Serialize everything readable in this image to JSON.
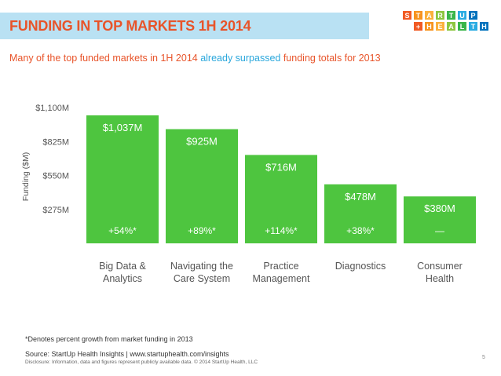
{
  "header": {
    "title": "FUNDING IN TOP MARKETS 1H 2014",
    "logo_row1": [
      "S",
      "T",
      "A",
      "R",
      "T",
      "U",
      "P"
    ],
    "logo_row2": [
      "+",
      "H",
      "E",
      "A",
      "L",
      "T",
      "H"
    ],
    "logo_colors_row1": [
      "#f15a24",
      "#f7931e",
      "#fbb03b",
      "#8cc63f",
      "#39b54a",
      "#29abe2",
      "#0071bc"
    ],
    "logo_colors_row2": [
      "#f15a24",
      "#f7931e",
      "#fbb03b",
      "#8cc63f",
      "#39b54a",
      "#29abe2",
      "#0071bc"
    ]
  },
  "subtitle": {
    "part1": "Many of the top funded markets in 1H 2014 ",
    "part2": "already surpassed",
    "part3": " funding totals for 2013"
  },
  "chart_data": {
    "type": "bar",
    "title": "FUNDING IN TOP MARKETS 1H 2014",
    "ylabel": "Funding ($M)",
    "xlabel": "",
    "ylim": [
      0,
      1100
    ],
    "yticks": [
      275,
      550,
      825,
      1100
    ],
    "ytick_labels": [
      "$275M",
      "$550M",
      "$825M",
      "$1,100M"
    ],
    "grid": false,
    "bar_color": "#4ec53f",
    "categories": [
      [
        "Big Data &",
        "Analytics"
      ],
      [
        "Navigating the",
        "Care System"
      ],
      [
        "Practice",
        "Management"
      ],
      [
        "Diagnostics"
      ],
      [
        "Consumer",
        "Health"
      ]
    ],
    "values": [
      1037,
      925,
      716,
      478,
      380
    ],
    "value_labels": [
      "$1,037M",
      "$925M",
      "$716M",
      "$478M",
      "$380M"
    ],
    "growth_labels": [
      "+54%*",
      "+89%*",
      "+114%*",
      "+38%*",
      "—"
    ]
  },
  "footer": {
    "footnote": "*Denotes percent growth from market funding in 2013",
    "source": "Source: StartUp Health Insights | www.startuphealth.com/insights",
    "disclosure": "Disclosure: Information, data and figures represent publicly available data. © 2014 StartUp Health, LLC",
    "page_number": "5"
  }
}
